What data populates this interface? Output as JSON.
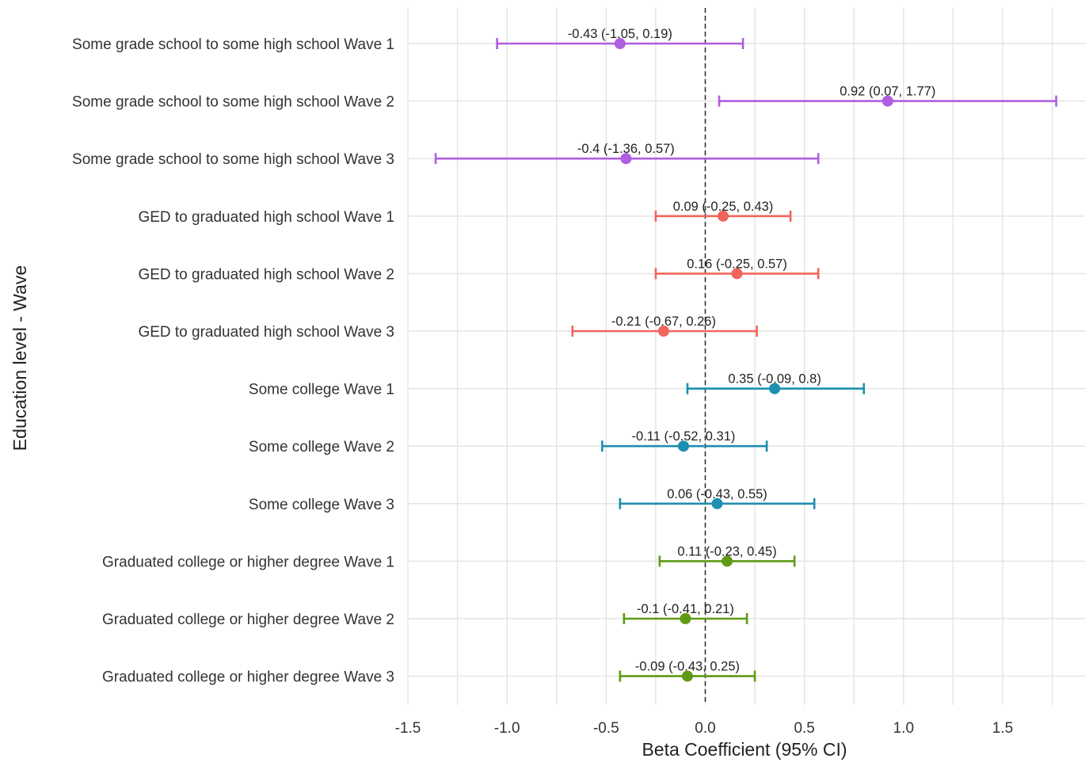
{
  "chart_data": {
    "type": "forest",
    "title": "",
    "xlabel": "Beta Coefficient (95% CI)",
    "ylabel": "Education level - Wave",
    "xlim": [
      -1.5,
      1.92
    ],
    "x_ticks": [
      -1.5,
      -1.0,
      -0.5,
      0.0,
      0.5,
      1.0,
      1.5
    ],
    "x_tick_labels": [
      "-1.5",
      "-1.0",
      "-0.5",
      "0.0",
      "0.5",
      "1.0",
      "1.5"
    ],
    "reference_line": 0,
    "reference_line_style": "dashed",
    "grid": true,
    "legend": "none",
    "rows": [
      {
        "category": "Some grade school to some high school Wave 1",
        "group": "Some grade school to some high school",
        "estimate": -0.43,
        "lower": -1.05,
        "upper": 0.19,
        "annotation": "-0.43 (-1.05, 0.19)",
        "color": "#b05ee0"
      },
      {
        "category": "Some grade school to some high school Wave 2",
        "group": "Some grade school to some high school",
        "estimate": 0.92,
        "lower": 0.07,
        "upper": 1.77,
        "annotation": "0.92 (0.07, 1.77)",
        "color": "#b05ee0"
      },
      {
        "category": "Some grade school to some high school Wave 3",
        "group": "Some grade school to some high school",
        "estimate": -0.4,
        "lower": -1.36,
        "upper": 0.57,
        "annotation": "-0.4 (-1.36, 0.57)",
        "color": "#b05ee0"
      },
      {
        "category": "GED to graduated high school Wave 1",
        "group": "GED to graduated high school",
        "estimate": 0.09,
        "lower": -0.25,
        "upper": 0.43,
        "annotation": "0.09 (-0.25, 0.43)",
        "color": "#f0655a"
      },
      {
        "category": "GED to graduated high school Wave 2",
        "group": "GED to graduated high school",
        "estimate": 0.16,
        "lower": -0.25,
        "upper": 0.57,
        "annotation": "0.16 (-0.25, 0.57)",
        "color": "#f0655a"
      },
      {
        "category": "GED to graduated high school Wave 3",
        "group": "GED to graduated high school",
        "estimate": -0.21,
        "lower": -0.67,
        "upper": 0.26,
        "annotation": "-0.21 (-0.67, 0.26)",
        "color": "#f0655a"
      },
      {
        "category": "Some college Wave 1",
        "group": "Some college",
        "estimate": 0.35,
        "lower": -0.09,
        "upper": 0.8,
        "annotation": "0.35 (-0.09, 0.8)",
        "color": "#1d8fb0"
      },
      {
        "category": "Some college Wave 2",
        "group": "Some college",
        "estimate": -0.11,
        "lower": -0.52,
        "upper": 0.31,
        "annotation": "-0.11 (-0.52, 0.31)",
        "color": "#1d8fb0"
      },
      {
        "category": "Some college Wave 3",
        "group": "Some college",
        "estimate": 0.06,
        "lower": -0.43,
        "upper": 0.55,
        "annotation": "0.06 (-0.43, 0.55)",
        "color": "#1d8fb0"
      },
      {
        "category": "Graduated college or higher degree Wave 1",
        "group": "Graduated college or higher degree",
        "estimate": 0.11,
        "lower": -0.23,
        "upper": 0.45,
        "annotation": "0.11 (-0.23, 0.45)",
        "color": "#5e9a14"
      },
      {
        "category": "Graduated college or higher degree Wave 2",
        "group": "Graduated college or higher degree",
        "estimate": -0.1,
        "lower": -0.41,
        "upper": 0.21,
        "annotation": "-0.1 (-0.41, 0.21)",
        "color": "#5e9a14"
      },
      {
        "category": "Graduated college or higher degree Wave 3",
        "group": "Graduated college or higher degree",
        "estimate": -0.09,
        "lower": -0.43,
        "upper": 0.25,
        "annotation": "-0.09 (-0.43, 0.25)",
        "color": "#5e9a14"
      }
    ]
  },
  "colors": {
    "grid": "#e3e3e3",
    "text": "#222222",
    "axis_text": "#333333",
    "reference_line": "#333333",
    "background": "#ffffff"
  }
}
